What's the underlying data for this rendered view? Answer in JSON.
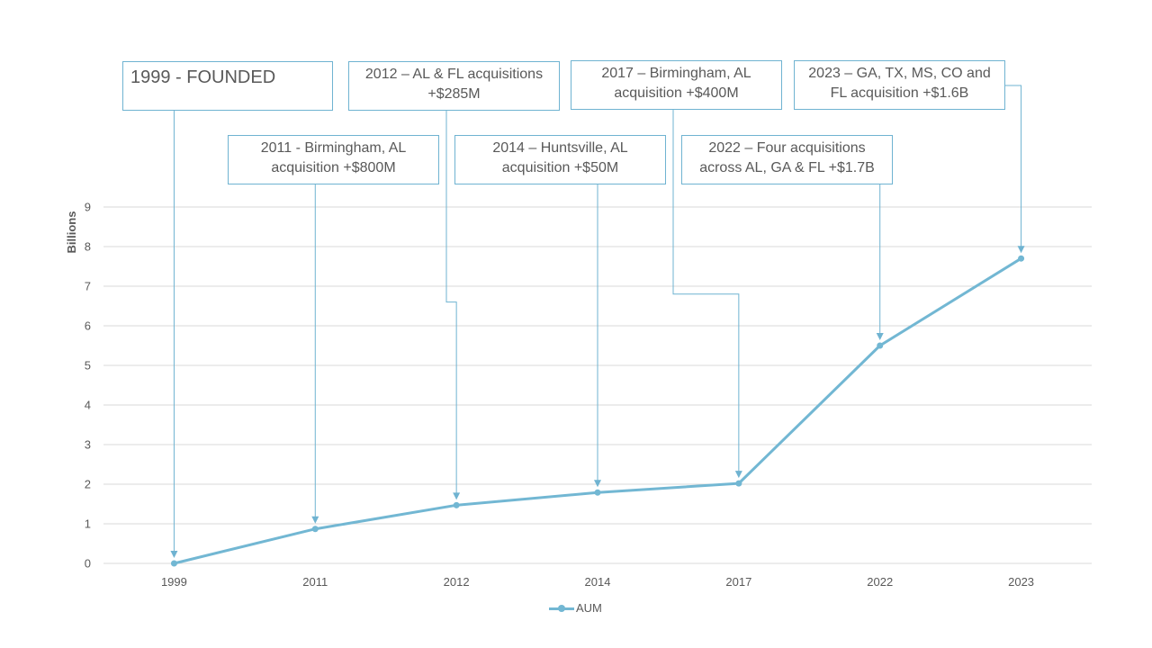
{
  "chart_data": {
    "type": "line",
    "categories": [
      "1999",
      "2011",
      "2012",
      "2014",
      "2017",
      "2022",
      "2023"
    ],
    "series": [
      {
        "name": "AUM",
        "values": [
          0,
          0.87,
          1.47,
          1.79,
          2.02,
          5.5,
          7.7
        ]
      }
    ],
    "ylabel": "Billions",
    "xlabel": "",
    "ylim": [
      0,
      9
    ],
    "yticks": [
      "0",
      "1",
      "2",
      "3",
      "4",
      "5",
      "6",
      "7",
      "8",
      "9"
    ],
    "grid": true,
    "legend": "bottom",
    "annotations": [
      {
        "category": "1999",
        "text": "1999 - FOUNDED"
      },
      {
        "category": "2011",
        "text": "2011 - Birmingham, AL acquisition +$800M"
      },
      {
        "category": "2012",
        "text": "2012 – AL & FL acquisitions +$285M"
      },
      {
        "category": "2014",
        "text": "2014 – Huntsville, AL acquisition +$50M"
      },
      {
        "category": "2017",
        "text": "2017 – Birmingham, AL acquisition +$400M"
      },
      {
        "category": "2022",
        "text": "2022 – Four acquisitions across AL, GA & FL +$1.7B"
      },
      {
        "category": "2023",
        "text": "2023 – GA, TX, MS, CO and FL acquisition +$1.6B"
      }
    ]
  },
  "colors": {
    "series": "#72b7d3",
    "connector": "#6fb3d1",
    "grid": "#d9d9d9",
    "text": "#595959"
  }
}
